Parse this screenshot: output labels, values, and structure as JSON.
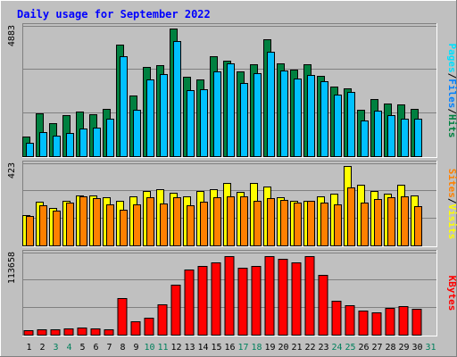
{
  "chart_data": {
    "type": "bar",
    "title": "Daily usage for September 2022",
    "categories": [
      "1",
      "2",
      "3",
      "4",
      "5",
      "6",
      "7",
      "8",
      "9",
      "10",
      "11",
      "12",
      "13",
      "14",
      "15",
      "16",
      "17",
      "18",
      "19",
      "20",
      "21",
      "22",
      "23",
      "24",
      "25",
      "26",
      "27",
      "28",
      "29",
      "30",
      "31"
    ],
    "weekend_days": [
      "3",
      "4",
      "10",
      "11",
      "17",
      "18",
      "24",
      "25",
      "31"
    ],
    "panels": [
      {
        "name": "hits-files-pages",
        "max_label": "4883",
        "ylim": [
          0,
          4883
        ],
        "axis_labels": [
          "Pages",
          "Files",
          "Hits"
        ],
        "series": [
          {
            "name": "Hits",
            "color": "#008040",
            "values": [
              740,
              1640,
              1270,
              1560,
              1700,
              1590,
              1820,
              4280,
              2320,
              3410,
              3470,
              4880,
              3050,
              2940,
              3840,
              3650,
              3230,
              3520,
              4490,
              3540,
              3300,
              3520,
              3090,
              2680,
              2580,
              1770,
              2200,
              2010,
              1990,
              1810,
              0
            ]
          },
          {
            "name": "Files",
            "color": "#00C0FF",
            "values": [
              500,
              920,
              780,
              900,
              1050,
              1080,
              1420,
              3820,
              1770,
              2950,
              3130,
              4410,
              2540,
              2570,
              3230,
              3540,
              2790,
              3170,
              4000,
              3290,
              2960,
              3120,
              2860,
              2340,
              2470,
              1380,
              1750,
              1580,
              1430,
              1420,
              0
            ]
          },
          {
            "name": "Pages",
            "color": "#00E0FF",
            "values": []
          }
        ]
      },
      {
        "name": "visits-sites",
        "max_label": "423",
        "ylim": [
          0,
          423
        ],
        "axis_labels": [
          "Sites",
          "Visits"
        ],
        "series": [
          {
            "name": "Visits",
            "color": "#FFFF00",
            "values": [
              160,
              232,
              200,
              240,
              268,
              268,
              255,
              240,
              263,
              290,
              300,
              280,
              260,
              290,
              300,
              333,
              283,
              333,
              313,
              255,
              240,
              240,
              263,
              275,
              423,
              325,
              290,
              275,
              323,
              268,
              0
            ]
          },
          {
            "name": "Sites",
            "color": "#FF8000",
            "values": [
              155,
              215,
              185,
              230,
              260,
              253,
              220,
              190,
              218,
              255,
              225,
              255,
              212,
              235,
              255,
              263,
              260,
              238,
              250,
              243,
              230,
              240,
              230,
              218,
              310,
              228,
              245,
              258,
              260,
              208,
              0
            ]
          }
        ]
      },
      {
        "name": "kbytes",
        "max_label": "113658",
        "ylim": [
          0,
          113658
        ],
        "axis_labels": [
          "KBytes"
        ],
        "series": [
          {
            "name": "KBytes",
            "color": "#FF0000",
            "values": [
              6000,
              8000,
              7500,
              9000,
              10500,
              9000,
              7500,
              52500,
              19000,
              24000,
              43000,
              72000,
              93500,
              98000,
              103000,
              112000,
              96000,
              98000,
              113000,
              108000,
              103000,
              113000,
              86000,
              48500,
              42000,
              34500,
              32000,
              38500,
              41000,
              37500,
              0
            ]
          }
        ]
      }
    ]
  },
  "colors": {
    "background": "#C0C0C0",
    "title": "#0000FF",
    "weekday_label": "#000000",
    "weekend_label": "#00805C",
    "pages_label": "#00E0FF",
    "files_label": "#0080FF",
    "hits_label": "#008040",
    "sites_label": "#FF8000",
    "visits_label": "#FFFF00",
    "kbytes_label": "#FF0000"
  }
}
